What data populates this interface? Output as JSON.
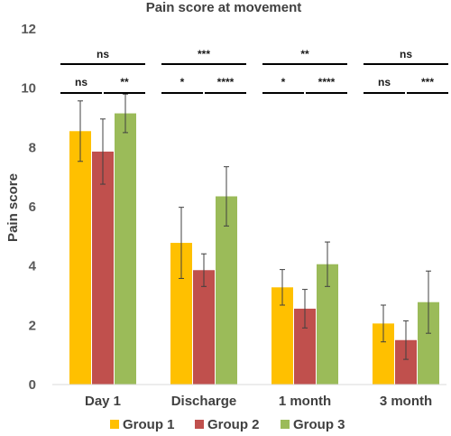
{
  "chart_data": {
    "type": "bar",
    "title": "Pain score at movement",
    "xlabel": "",
    "ylabel": "Pain score",
    "ylim": [
      0,
      12
    ],
    "yticks": [
      0,
      2,
      4,
      6,
      8,
      10,
      12
    ],
    "grid": false,
    "legend_position": "bottom",
    "categories": [
      "Day 1",
      "Discharge",
      "1 month",
      "3 month"
    ],
    "series": [
      {
        "name": "Group 1",
        "color": "#FFC000",
        "values": [
          8.55,
          4.78,
          3.28,
          2.06
        ],
        "error": [
          1.02,
          1.2,
          0.6,
          0.62
        ]
      },
      {
        "name": "Group 2",
        "color": "#C0504D",
        "values": [
          7.86,
          3.86,
          2.56,
          1.5
        ],
        "error": [
          1.1,
          0.55,
          0.65,
          0.65
        ]
      },
      {
        "name": "Group 3",
        "color": "#9BBB59",
        "values": [
          9.15,
          6.35,
          4.06,
          2.78
        ],
        "error": [
          0.65,
          1.0,
          0.75,
          1.05
        ]
      }
    ],
    "significance": [
      {
        "category": 0,
        "from": 0,
        "to": 2,
        "label": "ns"
      },
      {
        "category": 0,
        "from": 0,
        "to": 1,
        "label": "ns"
      },
      {
        "category": 0,
        "from": 1,
        "to": 2,
        "label": "**"
      },
      {
        "category": 1,
        "from": 0,
        "to": 2,
        "label": "***"
      },
      {
        "category": 1,
        "from": 0,
        "to": 1,
        "label": "*"
      },
      {
        "category": 1,
        "from": 1,
        "to": 2,
        "label": "****"
      },
      {
        "category": 2,
        "from": 0,
        "to": 2,
        "label": "**"
      },
      {
        "category": 2,
        "from": 0,
        "to": 1,
        "label": "*"
      },
      {
        "category": 2,
        "from": 1,
        "to": 2,
        "label": "****"
      },
      {
        "category": 3,
        "from": 0,
        "to": 2,
        "label": "ns"
      },
      {
        "category": 3,
        "from": 0,
        "to": 1,
        "label": "ns"
      },
      {
        "category": 3,
        "from": 1,
        "to": 2,
        "label": "***"
      }
    ]
  }
}
